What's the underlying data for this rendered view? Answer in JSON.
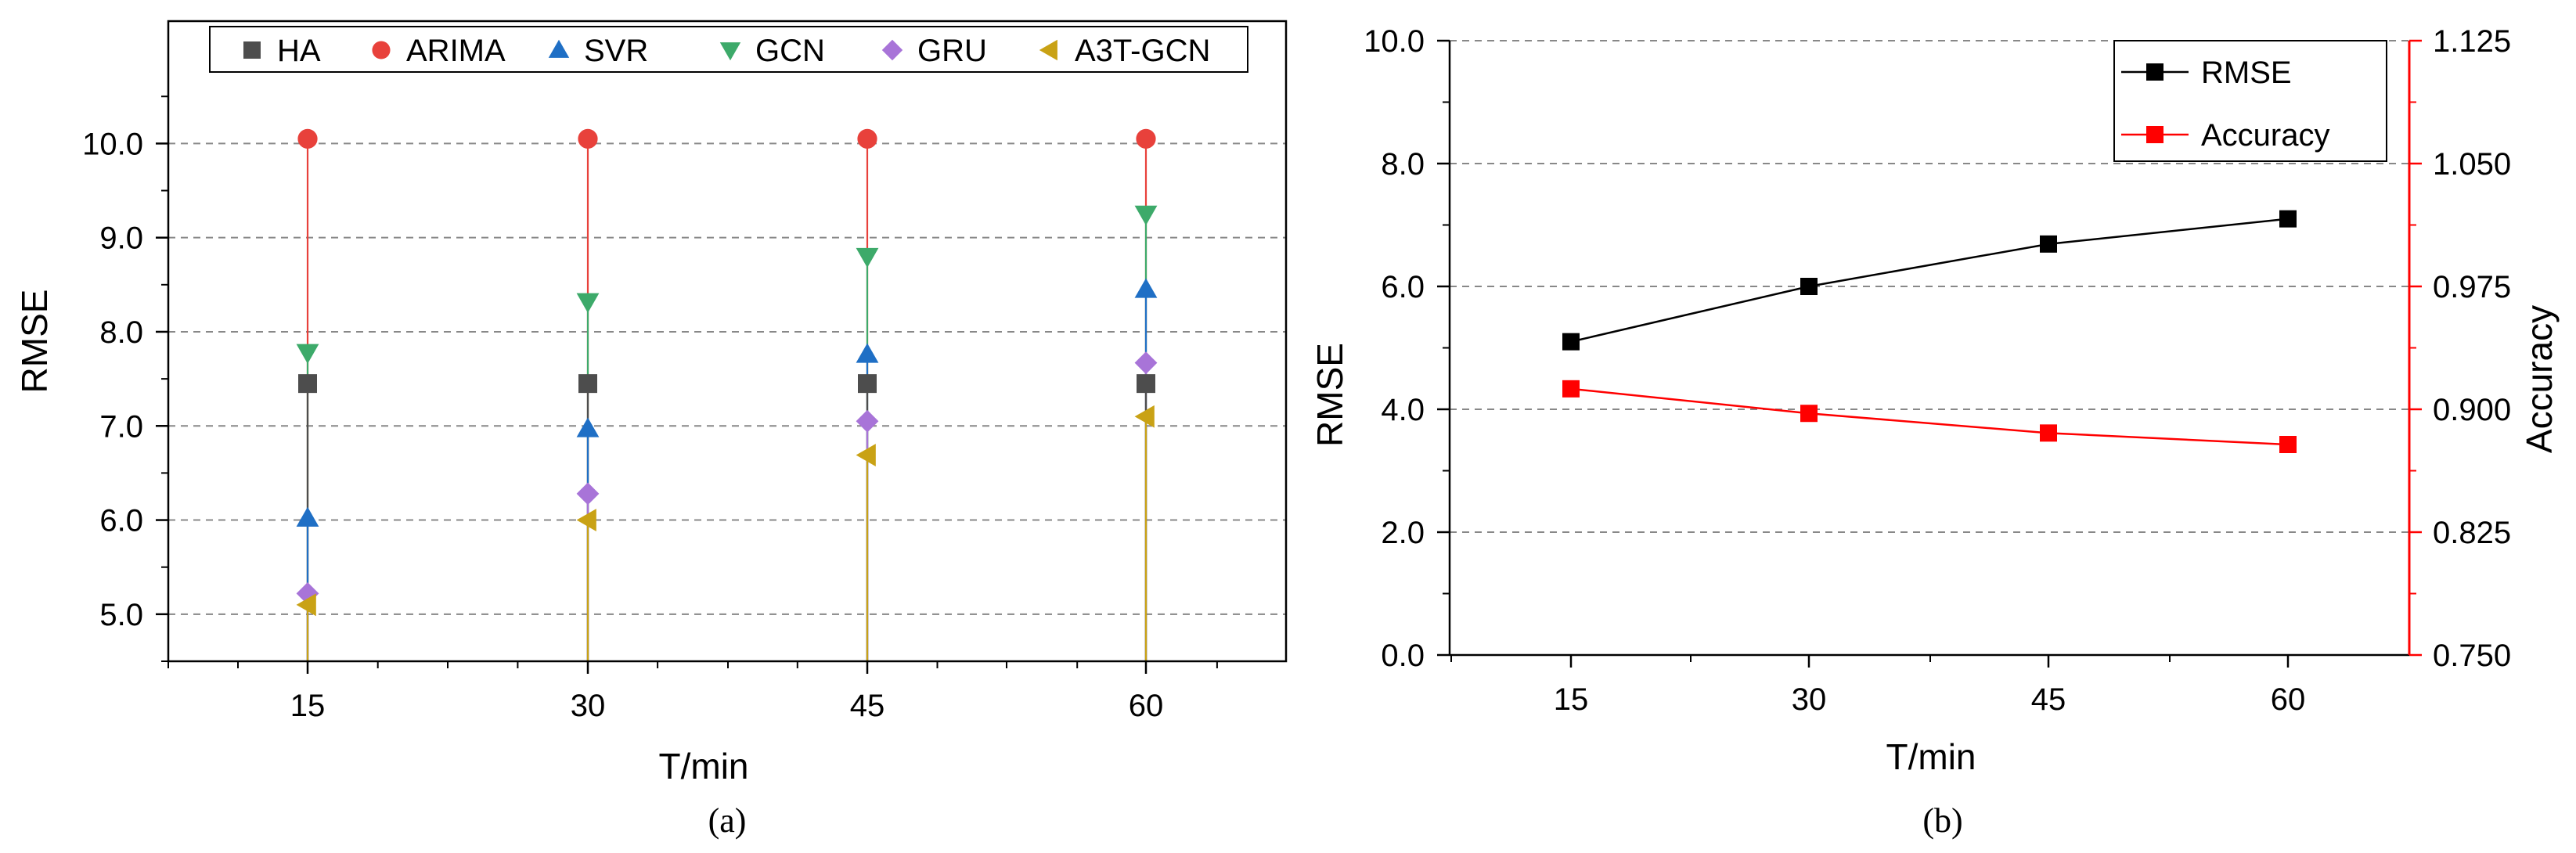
{
  "chart_data": [
    {
      "type": "scatter",
      "caption": "(a)",
      "xlabel": "T/min",
      "ylabel": "RMSE",
      "categories": [
        "15",
        "30",
        "45",
        "60"
      ],
      "ylim": [
        4.5,
        11.3
      ],
      "yticks": [
        "5.0",
        "6.0",
        "7.0",
        "8.0",
        "9.0",
        "10.0"
      ],
      "grid": true,
      "legend": "top",
      "series": [
        {
          "name": "HA",
          "color": "#4d4d4d",
          "marker": "square",
          "values": [
            7.45,
            7.45,
            7.45,
            7.45
          ]
        },
        {
          "name": "ARIMA",
          "color": "#e8413b",
          "marker": "circle",
          "values": [
            10.05,
            10.05,
            10.05,
            10.05
          ]
        },
        {
          "name": "SVR",
          "color": "#1f6fc5",
          "marker": "triangle-up",
          "values": [
            6.02,
            6.97,
            7.76,
            8.45
          ]
        },
        {
          "name": "GCN",
          "color": "#3daa6a",
          "marker": "triangle-down",
          "values": [
            7.78,
            8.32,
            8.8,
            9.25
          ]
        },
        {
          "name": "GRU",
          "color": "#a874d8",
          "marker": "diamond",
          "values": [
            5.22,
            6.28,
            7.05,
            7.67
          ]
        },
        {
          "name": "A3T-GCN",
          "color": "#c9a215",
          "marker": "triangle-left",
          "values": [
            5.1,
            6.0,
            6.69,
            7.1
          ]
        }
      ]
    },
    {
      "type": "line",
      "caption": "(b)",
      "xlabel": "T/min",
      "ylabel": "RMSE",
      "y2label": "Accuracy",
      "categories": [
        "15",
        "30",
        "45",
        "60"
      ],
      "ylim": [
        0,
        10
      ],
      "yticks": [
        "0.0",
        "2.0",
        "4.0",
        "6.0",
        "8.0",
        "10.0"
      ],
      "y2lim": [
        0.75,
        1.125
      ],
      "y2ticks": [
        "0.750",
        "0.825",
        "0.900",
        "0.975",
        "1.050",
        "1.125"
      ],
      "grid": true,
      "legend": "top-right",
      "series": [
        {
          "name": "RMSE",
          "color": "#000000",
          "axis": "left",
          "values": [
            5.1,
            6.0,
            6.69,
            7.1
          ]
        },
        {
          "name": "Accuracy",
          "color": "#ff0000",
          "axis": "right",
          "values": [
            0.9125,
            0.8975,
            0.8855,
            0.8785
          ]
        }
      ]
    }
  ]
}
